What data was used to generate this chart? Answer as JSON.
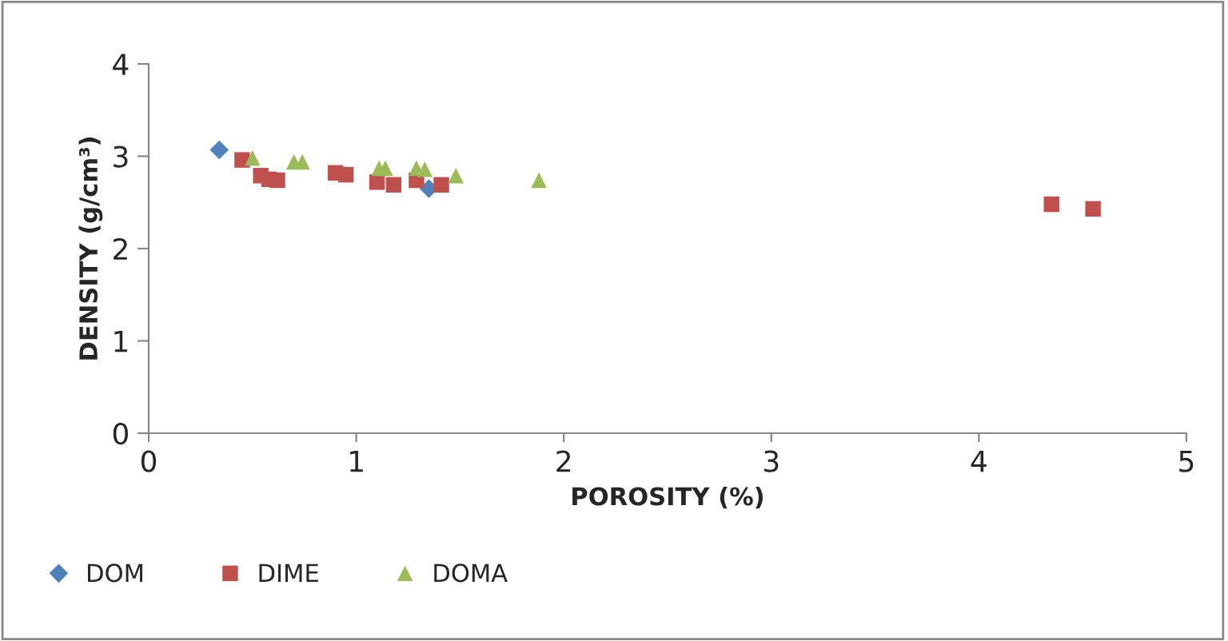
{
  "chart_data": {
    "type": "scatter",
    "xlabel": "POROSITY (%)",
    "ylabel": "DENSITY (g/cm³)",
    "xlim": [
      0,
      5
    ],
    "xticks": [
      0,
      1,
      2,
      3,
      4,
      5
    ],
    "ylim": [
      0,
      4
    ],
    "yticks": [
      0,
      1,
      2,
      3,
      4
    ],
    "grid": false,
    "legend": "bottom",
    "series": [
      {
        "name": "DOM",
        "color": "#4f81bd",
        "marker": "diamond",
        "x": [
          0.34,
          1.35
        ],
        "values": [
          3.07,
          2.65
        ]
      },
      {
        "name": "DIME",
        "color": "#c0504d",
        "marker": "square",
        "x": [
          0.45,
          0.54,
          0.58,
          0.62,
          0.9,
          0.95,
          1.1,
          1.18,
          1.29,
          1.41,
          4.35,
          4.55
        ],
        "values": [
          2.96,
          2.79,
          2.75,
          2.74,
          2.82,
          2.8,
          2.72,
          2.69,
          2.74,
          2.69,
          2.48,
          2.43
        ]
      },
      {
        "name": "DOMA",
        "color": "#9bbb59",
        "marker": "triangle",
        "x": [
          0.5,
          0.7,
          0.74,
          1.11,
          1.14,
          1.29,
          1.33,
          1.48,
          1.88
        ],
        "values": [
          2.98,
          2.94,
          2.94,
          2.87,
          2.87,
          2.87,
          2.86,
          2.79,
          2.74
        ]
      }
    ]
  }
}
